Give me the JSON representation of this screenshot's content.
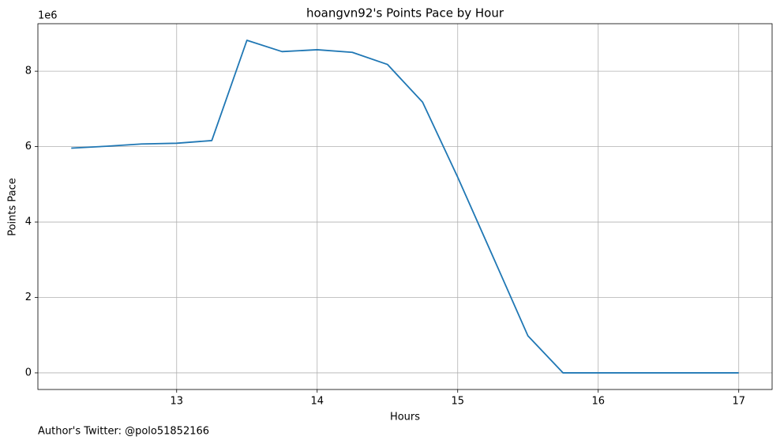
{
  "chart_data": {
    "type": "line",
    "title": "hoangvn92's Points Pace by Hour",
    "x_label": "Hours",
    "y_label": "Points Pace",
    "y_offset_label": "1e6",
    "footnote": "Author's Twitter: @polo51852166",
    "x": [
      12.25,
      12.5,
      12.75,
      13,
      13.25,
      13.5,
      13.75,
      14,
      14.25,
      14.5,
      14.75,
      15,
      15.25,
      15.5,
      15.75,
      16,
      16.25,
      16.5,
      16.75,
      17
    ],
    "series": [
      {
        "color": "#1f77b4",
        "values": [
          5.96,
          6.01,
          6.07,
          6.09,
          6.16,
          8.82,
          8.52,
          8.57,
          8.5,
          8.18,
          7.18,
          5.19,
          3.09,
          0.98,
          0,
          0,
          0,
          0,
          0,
          0
        ]
      }
    ],
    "xlim": [
      12.0125,
      17.2375
    ],
    "ylim": [
      -0.441,
      9.26
    ],
    "xticks": [
      13,
      14,
      15,
      16,
      17
    ],
    "yticks": [
      0,
      2,
      4,
      6,
      8
    ],
    "grid": true
  }
}
